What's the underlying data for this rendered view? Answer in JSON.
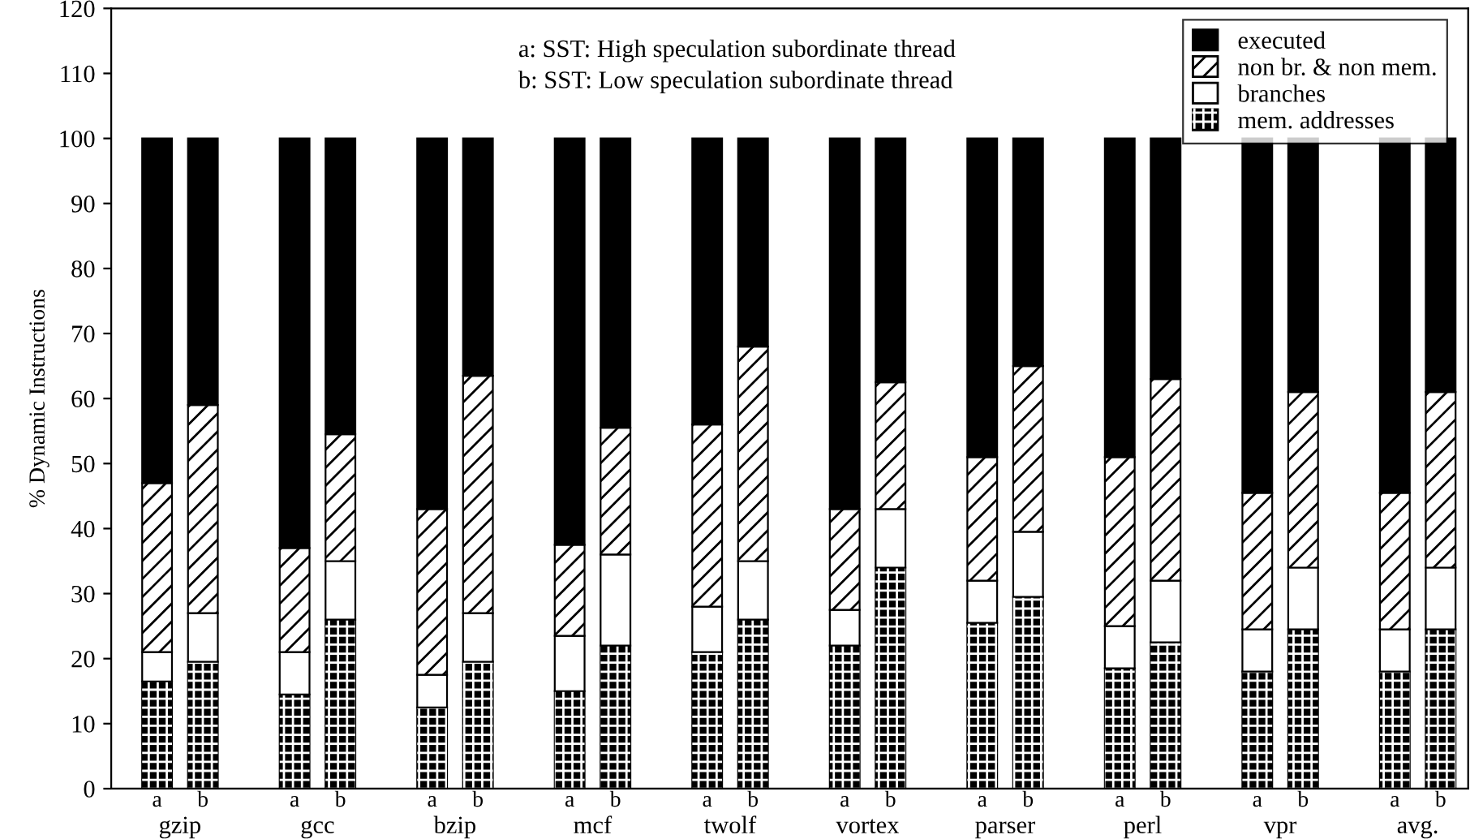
{
  "chart_data": {
    "type": "bar",
    "stacked": true,
    "ylabel": "% Dynamic Instructions",
    "categories": [
      "a",
      "b",
      "a",
      "b",
      "a",
      "b",
      "a",
      "b",
      "a",
      "b",
      "a",
      "b",
      "a",
      "b",
      "a",
      "b",
      "a",
      "b",
      "a",
      "b"
    ],
    "series": [
      {
        "name": "mem. addresses",
        "color": "#000000",
        "values": [
          16.5,
          19.5,
          14.5,
          26,
          12.5,
          19.5,
          15,
          22,
          21,
          26,
          22,
          34,
          25.5,
          29.5,
          18.5,
          22.5,
          18,
          24.5,
          18,
          24.5
        ]
      },
      {
        "name": "branches",
        "color": "#ffffff",
        "values": [
          4.5,
          7.5,
          6.5,
          9,
          5,
          7.5,
          8.5,
          14,
          7,
          9,
          5.5,
          9,
          6.5,
          10,
          6.5,
          9.5,
          6.5,
          9.5,
          6.5,
          9.5
        ]
      },
      {
        "name": "non br. & non mem.",
        "color": "#ffffff",
        "values": [
          26,
          32,
          16,
          19.5,
          25.5,
          36.5,
          14,
          19.5,
          28,
          33,
          15.5,
          19.5,
          19,
          25.5,
          26,
          31,
          21,
          27,
          21,
          27
        ]
      },
      {
        "name": "executed",
        "color": "#000000",
        "values": [
          53,
          41,
          63,
          45.5,
          57,
          36.5,
          62.5,
          44.5,
          44,
          32,
          57,
          37.5,
          49,
          35,
          49,
          37,
          54.5,
          39,
          54.5,
          39
        ]
      }
    ],
    "ylim": [
      0,
      120
    ],
    "yticks": [
      0,
      10,
      20,
      30,
      40,
      50,
      60,
      70,
      80,
      90,
      100,
      110,
      120
    ],
    "grid": false,
    "legend": "top right",
    "annotations": [
      "a: SST: High speculation subordinate thread",
      "b: SST: Low speculation subordinate thread",
      "gzip",
      "gcc",
      "bzip",
      "mcf",
      "twolf",
      "vortex",
      "parser",
      "perl",
      "vpr",
      "avg."
    ]
  }
}
